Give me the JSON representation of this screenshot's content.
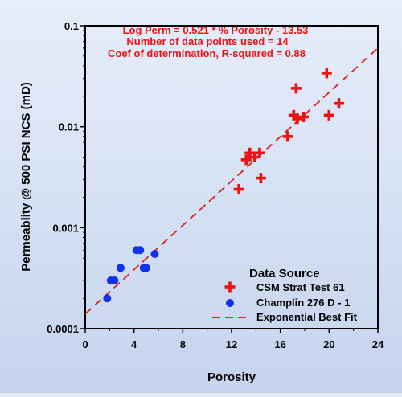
{
  "colors": {
    "series_csm": "#ee1111",
    "series_champlin": "#1133ee",
    "fit_line": "#dd2222",
    "annotation": "#ee1111",
    "axis": "#000000"
  },
  "chart_data": {
    "type": "scatter",
    "xlabel": "Porosity",
    "ylabel": "Permeablity @ 500 PSI NCS (mD)",
    "xlim": [
      0,
      24
    ],
    "ylim": [
      0.0001,
      0.1
    ],
    "y_scale": "log",
    "x_ticks": [
      0,
      4,
      8,
      12,
      16,
      20,
      24
    ],
    "y_ticks": [
      {
        "value": 0.0001,
        "label": "0.0001"
      },
      {
        "value": 0.001,
        "label": "0.001"
      },
      {
        "value": 0.01,
        "label": "0.01"
      },
      {
        "value": 0.1,
        "label": "0.1"
      }
    ],
    "annotations": [
      "Log Perm  = 0.521 * % Porosity  - 13.53",
      "Number of data points used = 14",
      "Coef of determination, R-squared = 0.88"
    ],
    "legend_title": "Data Source",
    "legend_position": "bottom-right",
    "series": [
      {
        "name": "CSM Strat Test 61",
        "marker": "plus",
        "points": [
          {
            "x": 12.6,
            "y": 0.0024
          },
          {
            "x": 13.2,
            "y": 0.0047
          },
          {
            "x": 13.5,
            "y": 0.0055
          },
          {
            "x": 13.9,
            "y": 0.005
          },
          {
            "x": 14.3,
            "y": 0.0055
          },
          {
            "x": 14.4,
            "y": 0.0031
          },
          {
            "x": 16.6,
            "y": 0.008
          },
          {
            "x": 17.1,
            "y": 0.013
          },
          {
            "x": 17.3,
            "y": 0.024
          },
          {
            "x": 17.4,
            "y": 0.012
          },
          {
            "x": 17.9,
            "y": 0.0125
          },
          {
            "x": 19.8,
            "y": 0.034
          },
          {
            "x": 20.0,
            "y": 0.013
          },
          {
            "x": 20.8,
            "y": 0.017
          }
        ]
      },
      {
        "name": "Champlin 276 D - 1",
        "marker": "circle",
        "points": [
          {
            "x": 1.8,
            "y": 0.0002
          },
          {
            "x": 2.1,
            "y": 0.0003
          },
          {
            "x": 2.4,
            "y": 0.0003
          },
          {
            "x": 2.9,
            "y": 0.0004
          },
          {
            "x": 4.2,
            "y": 0.0006
          },
          {
            "x": 4.5,
            "y": 0.0006
          },
          {
            "x": 4.8,
            "y": 0.0004
          },
          {
            "x": 5.0,
            "y": 0.0004
          },
          {
            "x": 5.7,
            "y": 0.00055
          }
        ]
      },
      {
        "name": "Exponential  Best Fit",
        "marker": "dashed-line",
        "points": [
          {
            "x": 0,
            "y": 0.00014
          },
          {
            "x": 24,
            "y": 0.06
          }
        ]
      }
    ]
  }
}
